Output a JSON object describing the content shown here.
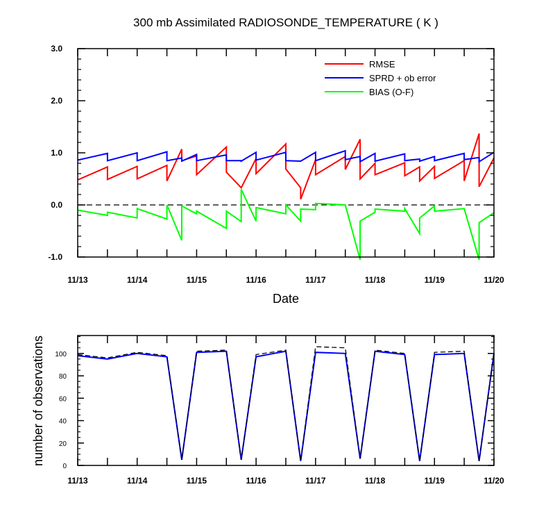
{
  "chart_data": [
    {
      "type": "line",
      "title": "300 mb Assimilated RADIOSONDE_TEMPERATURE ( K )",
      "xlabel": "Date",
      "ylabel": "",
      "x_ticks": [
        "11/13",
        "11/14",
        "11/15",
        "11/16",
        "11/17",
        "11/18",
        "11/19",
        "11/20"
      ],
      "y_ticks": [
        "-1.0",
        "0.0",
        "1.0",
        "2.0",
        "3.0"
      ],
      "xlim": [
        0,
        7
      ],
      "ylim": [
        -1.0,
        3.0
      ],
      "reference_line": 0.0,
      "legend_position": "top-right",
      "series": [
        {
          "name": "RMSE",
          "color": "#ff0000",
          "points": [
            [
              0,
              0.48
            ],
            [
              0.5,
              0.73
            ],
            [
              0.5,
              0.49
            ],
            [
              1.0,
              0.74
            ],
            [
              1.0,
              0.5
            ],
            [
              1.5,
              0.76
            ],
            [
              1.5,
              0.46
            ],
            [
              1.75,
              1.07
            ],
            [
              1.75,
              0.85
            ],
            [
              2.0,
              0.94
            ],
            [
              2.0,
              0.58
            ],
            [
              2.5,
              1.11
            ],
            [
              2.5,
              0.63
            ],
            [
              2.75,
              0.33
            ],
            [
              3.0,
              0.89
            ],
            [
              3.0,
              0.6
            ],
            [
              3.5,
              1.17
            ],
            [
              3.5,
              0.69
            ],
            [
              3.75,
              0.33
            ],
            [
              3.75,
              0.11
            ],
            [
              4.0,
              0.87
            ],
            [
              4.0,
              0.58
            ],
            [
              4.5,
              0.93
            ],
            [
              4.5,
              0.68
            ],
            [
              4.75,
              1.26
            ],
            [
              4.75,
              0.5
            ],
            [
              5.0,
              0.8
            ],
            [
              5.0,
              0.58
            ],
            [
              5.5,
              0.81
            ],
            [
              5.5,
              0.56
            ],
            [
              5.75,
              0.73
            ],
            [
              5.75,
              0.46
            ],
            [
              6.0,
              0.74
            ],
            [
              6.0,
              0.51
            ],
            [
              6.5,
              0.85
            ],
            [
              6.5,
              0.46
            ],
            [
              6.75,
              1.37
            ],
            [
              6.75,
              0.35
            ],
            [
              7.0,
              0.9
            ]
          ]
        },
        {
          "name": "SPRD + ob error",
          "color": "#0000ff",
          "points": [
            [
              0,
              0.86
            ],
            [
              0.5,
              0.99
            ],
            [
              0.5,
              0.85
            ],
            [
              1.0,
              1.0
            ],
            [
              1.0,
              0.85
            ],
            [
              1.5,
              1.02
            ],
            [
              1.5,
              0.85
            ],
            [
              1.75,
              0.9
            ],
            [
              1.75,
              0.84
            ],
            [
              2.0,
              0.97
            ],
            [
              2.0,
              0.85
            ],
            [
              2.5,
              0.96
            ],
            [
              2.5,
              0.85
            ],
            [
              2.75,
              0.85
            ],
            [
              2.75,
              0.84
            ],
            [
              3.0,
              1.01
            ],
            [
              3.0,
              0.86
            ],
            [
              3.5,
              1.01
            ],
            [
              3.5,
              0.85
            ],
            [
              3.75,
              0.84
            ],
            [
              4.0,
              1.01
            ],
            [
              4.0,
              0.85
            ],
            [
              4.5,
              1.04
            ],
            [
              4.5,
              0.87
            ],
            [
              4.75,
              0.93
            ],
            [
              4.75,
              0.83
            ],
            [
              5.0,
              0.99
            ],
            [
              5.0,
              0.84
            ],
            [
              5.5,
              0.98
            ],
            [
              5.5,
              0.85
            ],
            [
              5.75,
              0.88
            ],
            [
              5.75,
              0.84
            ],
            [
              6.0,
              0.93
            ],
            [
              6.0,
              0.85
            ],
            [
              6.5,
              0.99
            ],
            [
              6.5,
              0.87
            ],
            [
              6.75,
              0.91
            ],
            [
              6.75,
              0.83
            ],
            [
              7.0,
              1.01
            ]
          ]
        },
        {
          "name": "BIAS (O-F)",
          "color": "#00ff00",
          "points": [
            [
              0,
              -0.1
            ],
            [
              0.5,
              -0.2
            ],
            [
              0.5,
              -0.14
            ],
            [
              1.0,
              -0.25
            ],
            [
              1.0,
              -0.07
            ],
            [
              1.5,
              -0.27
            ],
            [
              1.5,
              0.0
            ],
            [
              1.75,
              -0.68
            ],
            [
              1.75,
              -0.02
            ],
            [
              2.0,
              -0.17
            ],
            [
              2.0,
              -0.12
            ],
            [
              2.5,
              -0.45
            ],
            [
              2.5,
              -0.12
            ],
            [
              2.75,
              -0.32
            ],
            [
              2.75,
              0.3
            ],
            [
              3.0,
              -0.31
            ],
            [
              3.0,
              -0.05
            ],
            [
              3.5,
              -0.17
            ],
            [
              3.5,
              0.0
            ],
            [
              3.75,
              -0.31
            ],
            [
              3.75,
              -0.08
            ],
            [
              4.0,
              -0.09
            ],
            [
              4.0,
              0.03
            ],
            [
              4.5,
              0.0
            ],
            [
              4.75,
              -1.05
            ],
            [
              4.75,
              -0.31
            ],
            [
              5.0,
              -0.14
            ],
            [
              5.0,
              -0.08
            ],
            [
              5.5,
              -0.12
            ],
            [
              5.5,
              -0.07
            ],
            [
              5.75,
              -0.55
            ],
            [
              5.75,
              -0.25
            ],
            [
              6.0,
              -0.02
            ],
            [
              6.0,
              -0.12
            ],
            [
              6.5,
              -0.07
            ],
            [
              6.75,
              -1.05
            ],
            [
              6.75,
              -0.34
            ],
            [
              7.0,
              -0.15
            ]
          ]
        }
      ]
    },
    {
      "type": "line",
      "title": "",
      "xlabel": "",
      "ylabel": "number of observations",
      "x_ticks": [
        "11/13",
        "11/14",
        "11/15",
        "11/16",
        "11/17",
        "11/18",
        "11/19",
        "11/20"
      ],
      "y_ticks": [
        "0",
        "20",
        "40",
        "60",
        "80",
        "100"
      ],
      "xlim": [
        0,
        7
      ],
      "ylim": [
        0,
        116
      ],
      "series": [
        {
          "name": "",
          "color": "#0000ff",
          "style": "solid",
          "points": [
            [
              0,
              98
            ],
            [
              0.5,
              95
            ],
            [
              1.0,
              100
            ],
            [
              1.5,
              97
            ],
            [
              1.75,
              5
            ],
            [
              2.0,
              101
            ],
            [
              2.5,
              102
            ],
            [
              2.75,
              5
            ],
            [
              3.0,
              97
            ],
            [
              3.5,
              102
            ],
            [
              3.75,
              4
            ],
            [
              4.0,
              101
            ],
            [
              4.5,
              100
            ],
            [
              4.75,
              6
            ],
            [
              5.0,
              102
            ],
            [
              5.5,
              99
            ],
            [
              5.75,
              4
            ],
            [
              6.0,
              99
            ],
            [
              6.5,
              100
            ],
            [
              6.75,
              4
            ],
            [
              7.0,
              100
            ]
          ]
        },
        {
          "name": "",
          "color": "#000000",
          "style": "dashed",
          "points": [
            [
              0,
              99
            ],
            [
              0.5,
              96
            ],
            [
              1.0,
              101
            ],
            [
              1.5,
              98
            ],
            [
              1.75,
              5
            ],
            [
              2.0,
              102
            ],
            [
              2.5,
              103
            ],
            [
              2.75,
              5
            ],
            [
              3.0,
              99
            ],
            [
              3.5,
              103
            ],
            [
              3.75,
              4
            ],
            [
              4.0,
              106
            ],
            [
              4.5,
              105
            ],
            [
              4.75,
              6
            ],
            [
              5.0,
              103
            ],
            [
              5.5,
              100
            ],
            [
              5.75,
              4
            ],
            [
              6.0,
              101
            ],
            [
              6.5,
              102
            ],
            [
              6.75,
              4
            ],
            [
              7.0,
              101
            ]
          ]
        }
      ]
    }
  ]
}
